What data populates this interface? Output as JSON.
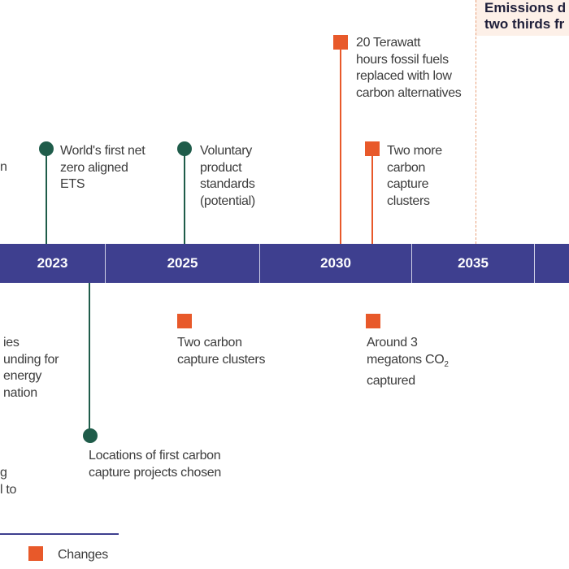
{
  "header": {
    "emissions_text_line1": "Emissions d",
    "emissions_text_line2": "two thirds fr"
  },
  "timeline": {
    "years": [
      "2023",
      "2025",
      "2030",
      "2035"
    ]
  },
  "events_above": [
    {
      "kind": "milestone",
      "lines": [
        "World's first net",
        "zero aligned",
        "ETS"
      ]
    },
    {
      "kind": "milestone",
      "lines": [
        "Voluntary",
        "product",
        "standards",
        "(potential)"
      ]
    },
    {
      "kind": "change",
      "lines": [
        "20 Terawatt",
        "hours fossil fuels",
        "replaced with low",
        "carbon alternatives"
      ]
    },
    {
      "kind": "change",
      "lines": [
        "Two more",
        "carbon",
        "capture",
        "clusters"
      ]
    }
  ],
  "events_below": [
    {
      "kind": "change",
      "lines": [
        "Two carbon",
        "capture clusters"
      ]
    },
    {
      "kind": "change",
      "lines": [
        "Around 3",
        "megatons CO",
        "captured"
      ],
      "subscript": "2"
    },
    {
      "kind": "milestone",
      "lines": [
        "Locations of first carbon",
        "capture projects chosen"
      ]
    }
  ],
  "clipped_left_fragments": {
    "upper": [
      "n"
    ],
    "middle": [
      "ies",
      "unding for",
      "energy",
      "nation"
    ],
    "lower": [
      "g",
      "l to"
    ]
  },
  "legend": {
    "changes_label": "Changes"
  },
  "colors": {
    "bar": "#3e3f8f",
    "milestone": "#1f5c4a",
    "change": "#e8592a",
    "highlight_box": "#fdf0e8"
  }
}
